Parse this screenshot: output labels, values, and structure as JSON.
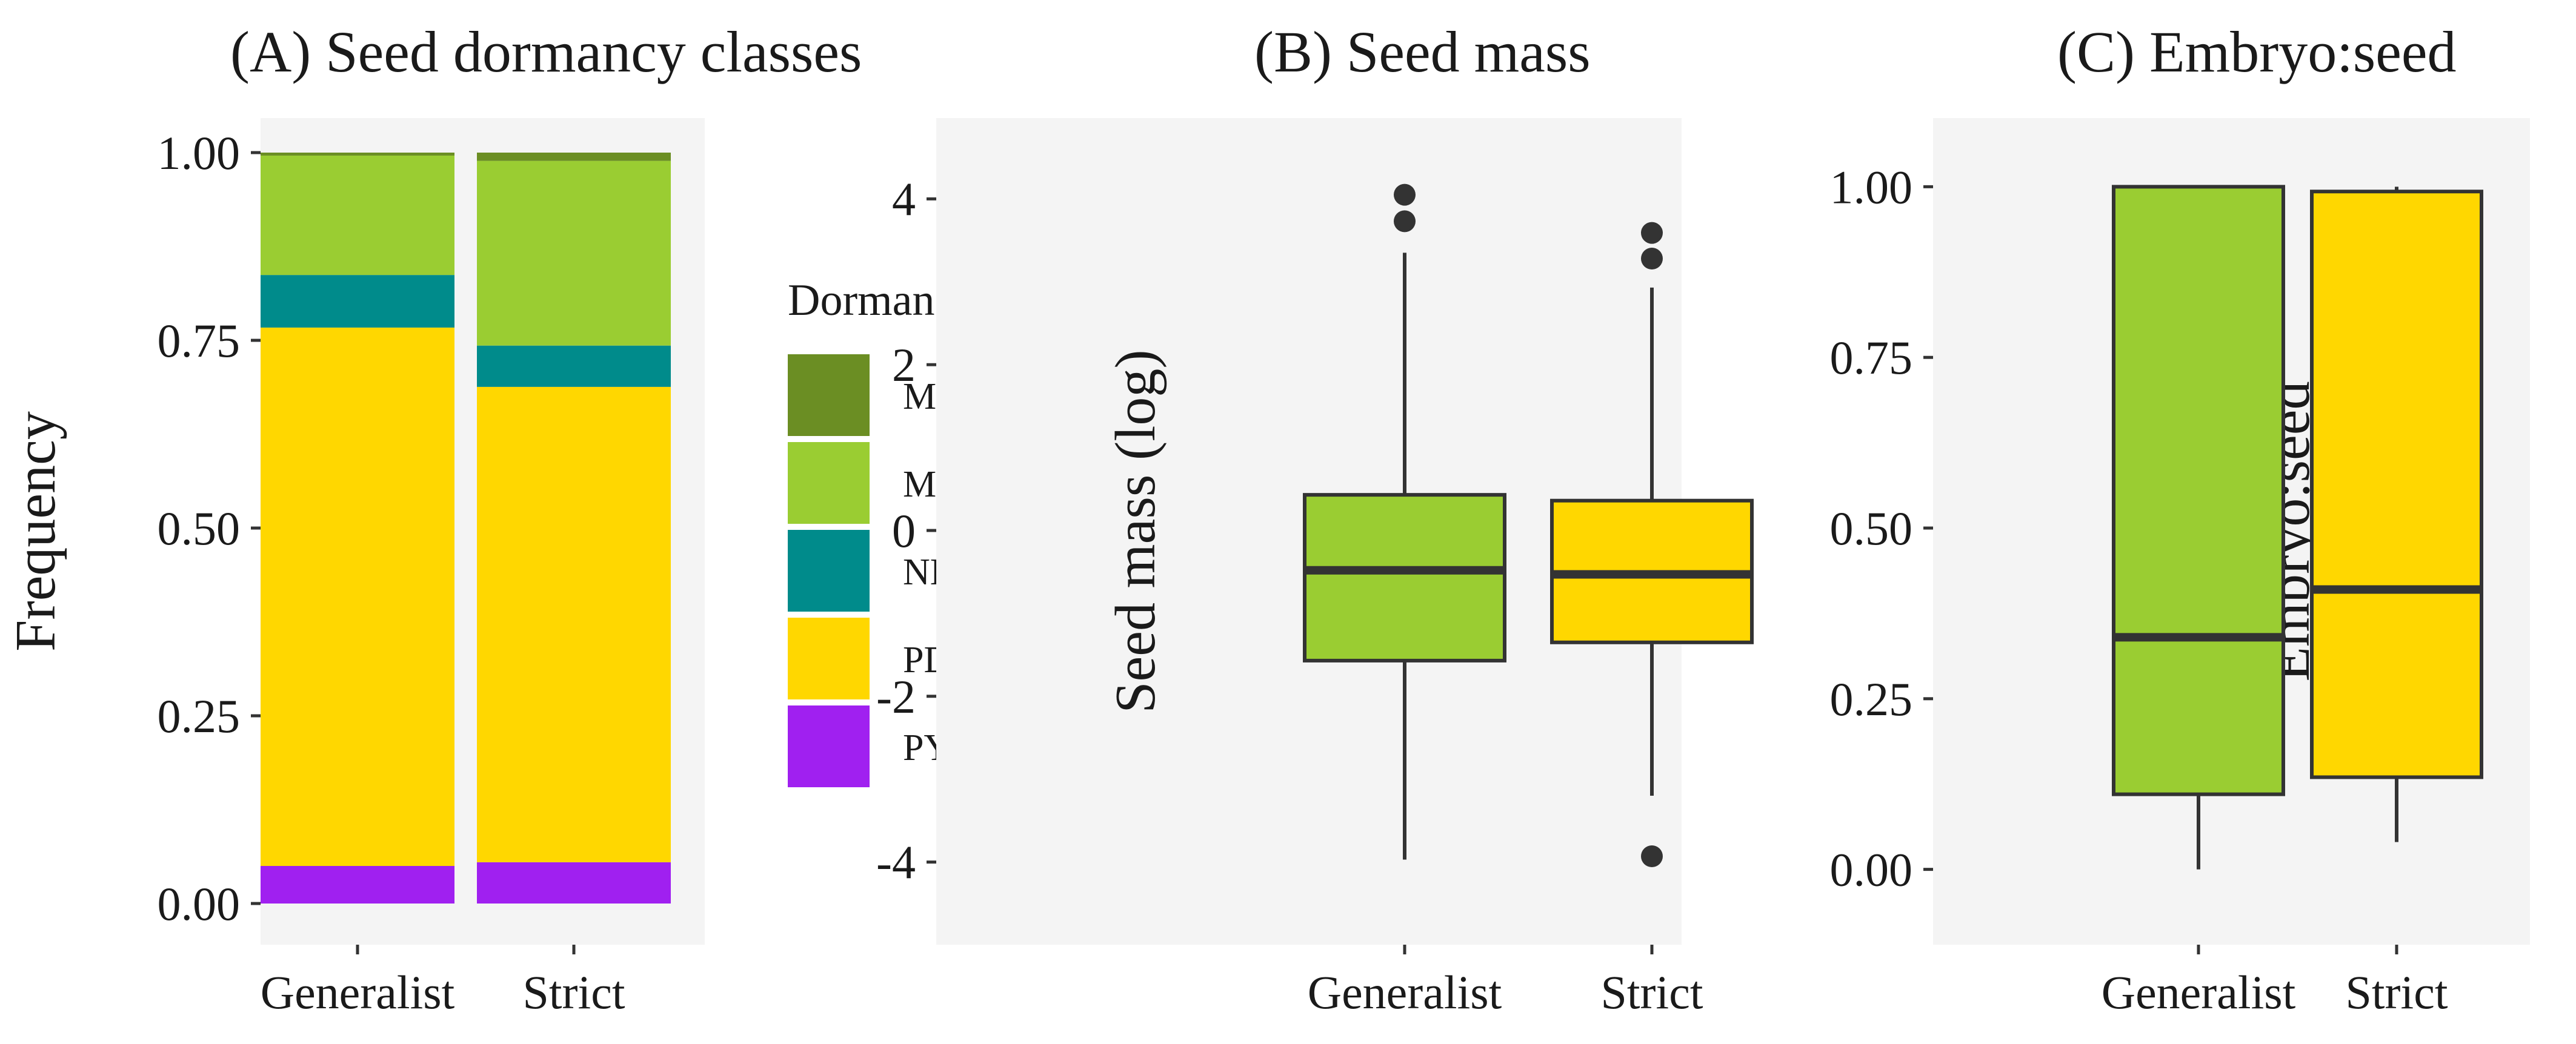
{
  "chart_data": [
    {
      "type": "bar",
      "stacked": true,
      "title": "(A) Seed dormancy classes",
      "xlabel": "",
      "ylabel": "Frequency",
      "categories": [
        "Generalist",
        "Strict"
      ],
      "ylim": [
        0,
        1
      ],
      "yticks": [
        "0.00",
        "0.25",
        "0.50",
        "0.75",
        "1.00"
      ],
      "legend_title": "Dormancy",
      "legend_position": "right",
      "series": [
        {
          "name": "PY",
          "color": "#A020F0",
          "values": [
            0.05,
            0.055
          ]
        },
        {
          "name": "PD",
          "color": "#FFD700",
          "values": [
            0.717,
            0.633
          ]
        },
        {
          "name": "ND",
          "color": "#008B8B",
          "values": [
            0.07,
            0.055
          ]
        },
        {
          "name": "MPD",
          "color": "#9ACD32",
          "values": [
            0.159,
            0.246
          ]
        },
        {
          "name": "MD",
          "color": "#6B8E23",
          "values": [
            0.004,
            0.011
          ]
        }
      ],
      "legend_order": [
        "MD",
        "MPD",
        "ND",
        "PD",
        "PY"
      ],
      "grid": false
    },
    {
      "type": "boxplot",
      "title": "(B) Seed mass",
      "xlabel": "",
      "ylabel": "Seed mass (log)",
      "categories": [
        "Generalist",
        "Strict"
      ],
      "ylim": [
        -4.5,
        4.5
      ],
      "yticks": [
        "-4",
        "-2",
        "0",
        "2",
        "4"
      ],
      "boxes": [
        {
          "name": "Generalist",
          "color": "#9ACD32",
          "whisker_low": -3.97,
          "q1": -1.57,
          "median": -0.48,
          "q3": 0.43,
          "whisker_high": 3.35,
          "outliers": [
            3.73,
            4.05
          ]
        },
        {
          "name": "Strict",
          "color": "#FFD700",
          "whisker_low": -3.2,
          "q1": -1.35,
          "median": -0.53,
          "q3": 0.36,
          "whisker_high": 2.93,
          "outliers": [
            3.28,
            3.59,
            -3.93
          ]
        }
      ],
      "grid": false
    },
    {
      "type": "boxplot",
      "title": "(C) Embryo:seed",
      "xlabel": "",
      "ylabel": "Embryo:seed",
      "categories": [
        "Generalist",
        "Strict"
      ],
      "ylim": [
        -0.05,
        1.05
      ],
      "yticks": [
        "0.00",
        "0.25",
        "0.50",
        "0.75",
        "1.00"
      ],
      "boxes": [
        {
          "name": "Generalist",
          "color": "#9ACD32",
          "whisker_low": 0.0,
          "q1": 0.11,
          "median": 0.34,
          "q3": 1.0,
          "whisker_high": 1.0,
          "outliers": []
        },
        {
          "name": "Strict",
          "color": "#FFD700",
          "whisker_low": 0.04,
          "q1": 0.135,
          "median": 0.41,
          "q3": 0.993,
          "whisker_high": 1.0,
          "outliers": []
        }
      ],
      "grid": false
    }
  ]
}
